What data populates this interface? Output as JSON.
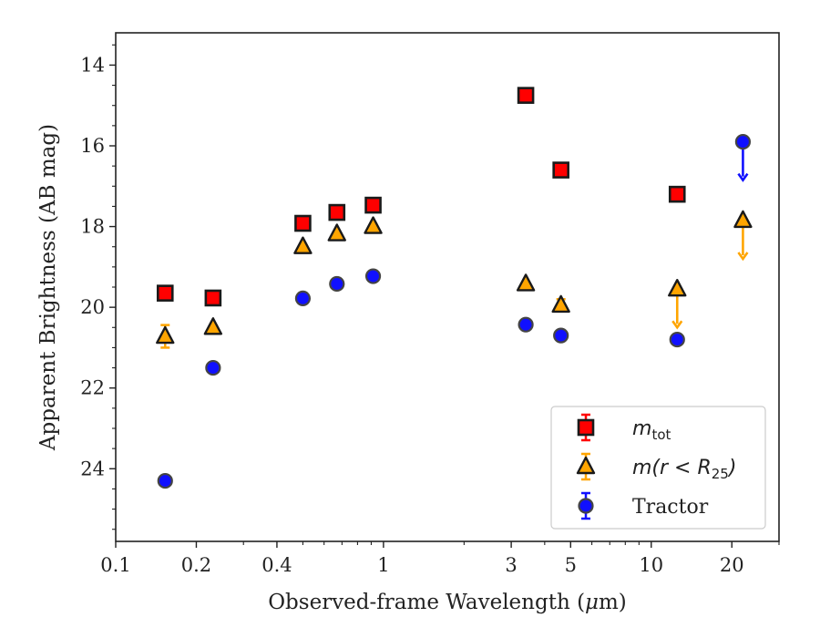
{
  "chart_data": {
    "type": "scatter",
    "xlabel_pre": "Observed-frame Wavelength (",
    "xlabel_mu": "μ",
    "xlabel_post": "m)",
    "ylabel": "Apparent Brightness (AB mag)",
    "xscale": "log",
    "xlim": [
      0.1,
      30
    ],
    "ylim": [
      25.8,
      13.2
    ],
    "y_inverted": true,
    "grid": false,
    "legend_position": "lower-right",
    "x_major_ticks": [
      0.1,
      0.2,
      0.4,
      1,
      3,
      5,
      10,
      20
    ],
    "x_tick_labels": [
      "0.1",
      "0.2",
      "0.4",
      "1",
      "3",
      "5",
      "10",
      "20"
    ],
    "x_minor_ticks": [
      0.3,
      0.5,
      0.6,
      0.7,
      0.8,
      0.9,
      2,
      4,
      6,
      7,
      8,
      9,
      30
    ],
    "y_major_ticks": [
      14,
      16,
      18,
      20,
      22,
      24
    ],
    "y_tick_labels": [
      "14",
      "16",
      "18",
      "20",
      "22",
      "24"
    ],
    "y_minor_ticks": [
      13.5,
      14.5,
      15,
      15.5,
      16.5,
      17,
      17.5,
      18.5,
      19,
      19.5,
      20.5,
      21,
      21.5,
      22.5,
      23,
      23.5,
      24.5,
      25,
      25.5
    ],
    "series": [
      {
        "name": "m_tot",
        "legend_main": "m",
        "legend_sub": "tot",
        "marker": "square",
        "color": "#ff0000",
        "edge_color": "#1a1a1a",
        "points": [
          {
            "x": 0.153,
            "y": 19.65
          },
          {
            "x": 0.231,
            "y": 19.77
          },
          {
            "x": 0.5,
            "y": 17.92
          },
          {
            "x": 0.67,
            "y": 17.65
          },
          {
            "x": 0.915,
            "y": 17.47
          },
          {
            "x": 3.4,
            "y": 14.75
          },
          {
            "x": 4.6,
            "y": 16.6
          },
          {
            "x": 12.5,
            "y": 17.2
          }
        ]
      },
      {
        "name": "m(r < R_25)",
        "legend_main": "m(r < R",
        "legend_sub": "25",
        "legend_tail": ")",
        "marker": "triangle",
        "color": "#ffa500",
        "edge_color": "#1a1a1a",
        "points": [
          {
            "x": 0.153,
            "y": 20.72,
            "yerr": 0.28
          },
          {
            "x": 0.231,
            "y": 20.5
          },
          {
            "x": 0.5,
            "y": 18.5
          },
          {
            "x": 0.67,
            "y": 18.18
          },
          {
            "x": 0.915,
            "y": 18.0
          },
          {
            "x": 3.4,
            "y": 19.42
          },
          {
            "x": 4.6,
            "y": 19.95,
            "yerr": 0.15
          },
          {
            "x": 12.5,
            "y": 19.55,
            "upper_limit_to": 20.5
          },
          {
            "x": 22.0,
            "y": 17.85,
            "upper_limit_to": 18.8
          }
        ]
      },
      {
        "name": "Tractor",
        "legend_main": "Tractor",
        "marker": "circle",
        "color": "#1010ff",
        "edge_color": "#444444",
        "points": [
          {
            "x": 0.153,
            "y": 24.3
          },
          {
            "x": 0.231,
            "y": 21.5
          },
          {
            "x": 0.5,
            "y": 19.78
          },
          {
            "x": 0.67,
            "y": 19.42
          },
          {
            "x": 0.915,
            "y": 19.23
          },
          {
            "x": 3.4,
            "y": 20.43
          },
          {
            "x": 4.6,
            "y": 20.7
          },
          {
            "x": 12.5,
            "y": 20.8
          },
          {
            "x": 22.0,
            "y": 15.9,
            "upper_limit_to": 16.85
          }
        ]
      }
    ]
  }
}
